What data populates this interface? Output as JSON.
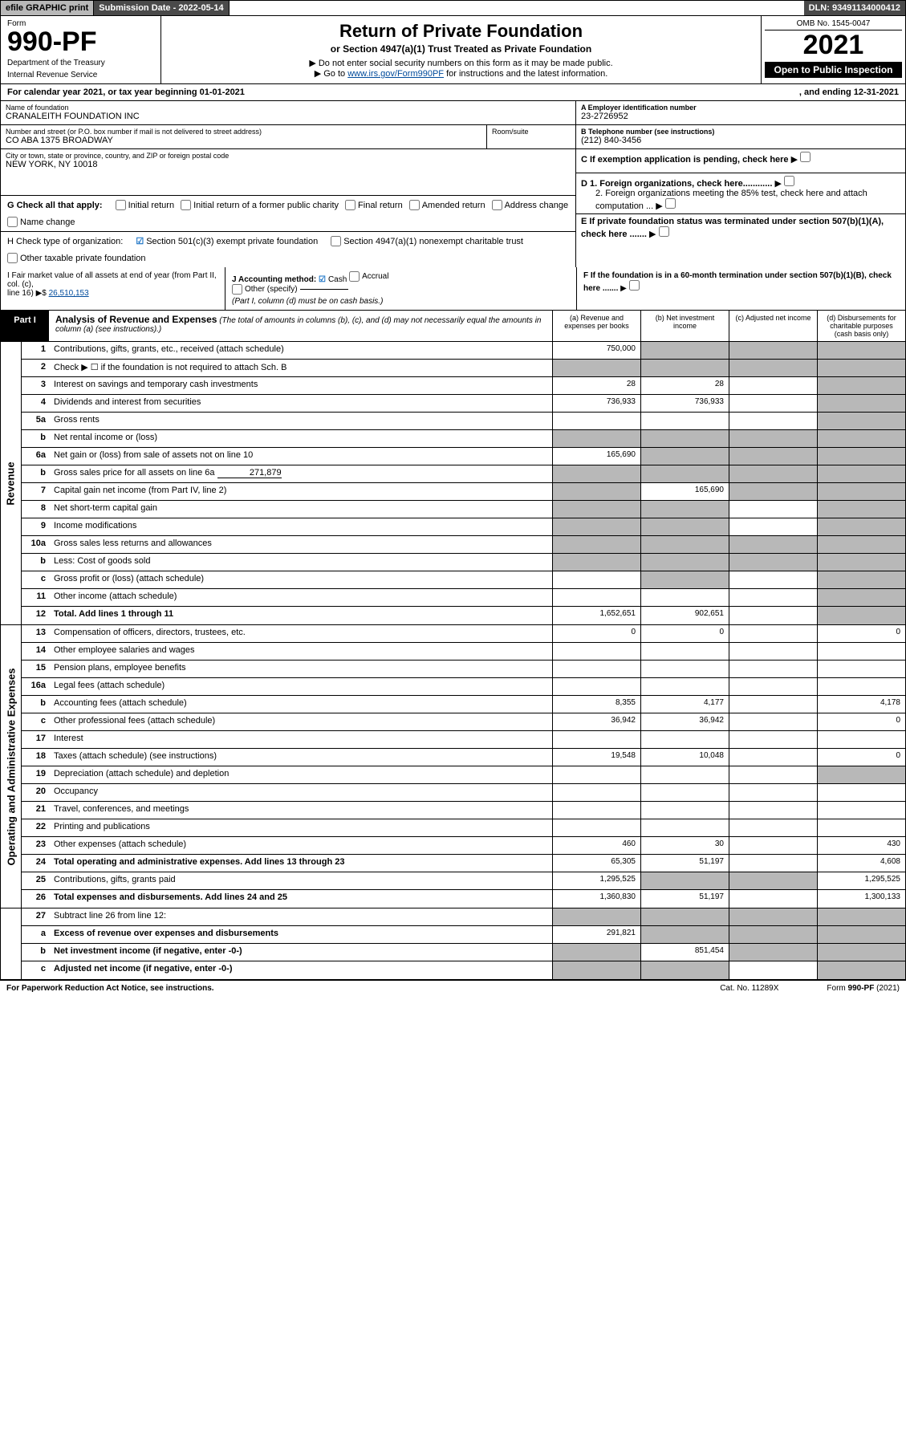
{
  "topbar": {
    "efile": "efile GRAPHIC print",
    "submission": "Submission Date - 2022-05-14",
    "dln": "DLN: 93491134000412"
  },
  "header": {
    "form_label": "Form",
    "form_number": "990-PF",
    "dept1": "Department of the Treasury",
    "dept2": "Internal Revenue Service",
    "title": "Return of Private Foundation",
    "subtitle": "or Section 4947(a)(1) Trust Treated as Private Foundation",
    "note1": "▶ Do not enter social security numbers on this form as it may be made public.",
    "note2_pre": "▶ Go to ",
    "note2_link": "www.irs.gov/Form990PF",
    "note2_post": " for instructions and the latest information.",
    "omb": "OMB No. 1545-0047",
    "year": "2021",
    "inspection": "Open to Public Inspection"
  },
  "calendar": {
    "text": "For calendar year 2021, or tax year beginning 01-01-2021",
    "ending": ", and ending 12-31-2021"
  },
  "info": {
    "name_lbl": "Name of foundation",
    "name": "CRANALEITH FOUNDATION INC",
    "addr_lbl": "Number and street (or P.O. box number if mail is not delivered to street address)",
    "addr": "CO ABA 1375 BROADWAY",
    "room_lbl": "Room/suite",
    "city_lbl": "City or town, state or province, country, and ZIP or foreign postal code",
    "city": "NEW YORK, NY  10018",
    "a_lbl": "A Employer identification number",
    "a_val": "23-2726952",
    "b_lbl": "B Telephone number (see instructions)",
    "b_val": "(212) 840-3456",
    "c_lbl": "C If exemption application is pending, check here",
    "d1": "D 1. Foreign organizations, check here............",
    "d2": "2. Foreign organizations meeting the 85% test, check here and attach computation ...",
    "e_lbl": "E  If private foundation status was terminated under section 507(b)(1)(A), check here .......",
    "f_lbl": "F  If the foundation is in a 60-month termination under section 507(b)(1)(B), check here ......."
  },
  "g": {
    "lead": "G Check all that apply:",
    "opts": [
      "Initial return",
      "Initial return of a former public charity",
      "Final return",
      "Amended return",
      "Address change",
      "Name change"
    ]
  },
  "h": {
    "lead": "H Check type of organization:",
    "opt1": "Section 501(c)(3) exempt private foundation",
    "opt2": "Section 4947(a)(1) nonexempt charitable trust",
    "opt3": "Other taxable private foundation"
  },
  "i": {
    "text1": "I Fair market value of all assets at end of year (from Part II, col. (c),",
    "text2": "line 16) ▶$ ",
    "value": "26,510,153"
  },
  "j": {
    "lead": "J Accounting method:",
    "cash": "Cash",
    "accrual": "Accrual",
    "other": "Other (specify)",
    "note": "(Part I, column (d) must be on cash basis.)"
  },
  "part1": {
    "label": "Part I",
    "title": "Analysis of Revenue and Expenses",
    "note": " (The total of amounts in columns (b), (c), and (d) may not necessarily equal the amounts in column (a) (see instructions).)",
    "col_a": "(a)   Revenue and expenses per books",
    "col_b": "(b)  Net investment income",
    "col_c": "(c)  Adjusted net income",
    "col_d": "(d)  Disbursements for charitable purposes (cash basis only)"
  },
  "sides": {
    "revenue": "Revenue",
    "opex": "Operating and Administrative Expenses"
  },
  "rows": {
    "r1": {
      "n": "1",
      "d": "Contributions, gifts, grants, etc., received (attach schedule)",
      "a": "750,000",
      "b": "",
      "c": "",
      "dd": "",
      "shadeB": true,
      "shadeC": true,
      "shadeD": true
    },
    "r2": {
      "n": "2",
      "d": "Check ▶ ☐ if the foundation is not required to attach Sch. B",
      "a": "",
      "b": "",
      "c": "",
      "dd": "",
      "shadeA": true,
      "shadeB": true,
      "shadeC": true,
      "shadeD": true,
      "noB": true
    },
    "r3": {
      "n": "3",
      "d": "Interest on savings and temporary cash investments",
      "a": "28",
      "b": "28",
      "c": "",
      "dd": "",
      "shadeD": true
    },
    "r4": {
      "n": "4",
      "d": "Dividends and interest from securities",
      "a": "736,933",
      "b": "736,933",
      "c": "",
      "dd": "",
      "shadeD": true
    },
    "r5a": {
      "n": "5a",
      "d": "Gross rents",
      "a": "",
      "b": "",
      "c": "",
      "dd": "",
      "shadeD": true
    },
    "r5b": {
      "n": "b",
      "d": "Net rental income or (loss)",
      "a": "",
      "b": "",
      "c": "",
      "dd": "",
      "shadeA": true,
      "shadeB": true,
      "shadeC": true,
      "shadeD": true
    },
    "r6a": {
      "n": "6a",
      "d": "Net gain or (loss) from sale of assets not on line 10",
      "a": "165,690",
      "b": "",
      "c": "",
      "dd": "",
      "shadeB": true,
      "shadeC": true,
      "shadeD": true
    },
    "r6b": {
      "n": "b",
      "d": "Gross sales price for all assets on line 6a",
      "inline": "271,879",
      "a": "",
      "b": "",
      "c": "",
      "dd": "",
      "shadeA": true,
      "shadeB": true,
      "shadeC": true,
      "shadeD": true
    },
    "r7": {
      "n": "7",
      "d": "Capital gain net income (from Part IV, line 2)",
      "a": "",
      "b": "165,690",
      "c": "",
      "dd": "",
      "shadeA": true,
      "shadeC": true,
      "shadeD": true
    },
    "r8": {
      "n": "8",
      "d": "Net short-term capital gain",
      "a": "",
      "b": "",
      "c": "",
      "dd": "",
      "shadeA": true,
      "shadeB": true,
      "shadeD": true
    },
    "r9": {
      "n": "9",
      "d": "Income modifications",
      "a": "",
      "b": "",
      "c": "",
      "dd": "",
      "shadeA": true,
      "shadeB": true,
      "shadeD": true
    },
    "r10a": {
      "n": "10a",
      "d": "Gross sales less returns and allowances",
      "a": "",
      "b": "",
      "c": "",
      "dd": "",
      "shadeA": true,
      "shadeB": true,
      "shadeC": true,
      "shadeD": true
    },
    "r10b": {
      "n": "b",
      "d": "Less: Cost of goods sold",
      "a": "",
      "b": "",
      "c": "",
      "dd": "",
      "shadeA": true,
      "shadeB": true,
      "shadeC": true,
      "shadeD": true
    },
    "r10c": {
      "n": "c",
      "d": "Gross profit or (loss) (attach schedule)",
      "a": "",
      "b": "",
      "c": "",
      "dd": "",
      "shadeB": true,
      "shadeD": true
    },
    "r11": {
      "n": "11",
      "d": "Other income (attach schedule)",
      "a": "",
      "b": "",
      "c": "",
      "dd": "",
      "shadeD": true
    },
    "r12": {
      "n": "12",
      "d": "Total. Add lines 1 through 11",
      "bold": true,
      "a": "1,652,651",
      "b": "902,651",
      "c": "",
      "dd": "",
      "shadeD": true
    },
    "r13": {
      "n": "13",
      "d": "Compensation of officers, directors, trustees, etc.",
      "a": "0",
      "b": "0",
      "c": "",
      "dd": "0"
    },
    "r14": {
      "n": "14",
      "d": "Other employee salaries and wages",
      "a": "",
      "b": "",
      "c": "",
      "dd": ""
    },
    "r15": {
      "n": "15",
      "d": "Pension plans, employee benefits",
      "a": "",
      "b": "",
      "c": "",
      "dd": ""
    },
    "r16a": {
      "n": "16a",
      "d": "Legal fees (attach schedule)",
      "a": "",
      "b": "",
      "c": "",
      "dd": ""
    },
    "r16b": {
      "n": "b",
      "d": "Accounting fees (attach schedule)",
      "a": "8,355",
      "b": "4,177",
      "c": "",
      "dd": "4,178"
    },
    "r16c": {
      "n": "c",
      "d": "Other professional fees (attach schedule)",
      "a": "36,942",
      "b": "36,942",
      "c": "",
      "dd": "0"
    },
    "r17": {
      "n": "17",
      "d": "Interest",
      "a": "",
      "b": "",
      "c": "",
      "dd": ""
    },
    "r18": {
      "n": "18",
      "d": "Taxes (attach schedule) (see instructions)",
      "a": "19,548",
      "b": "10,048",
      "c": "",
      "dd": "0"
    },
    "r19": {
      "n": "19",
      "d": "Depreciation (attach schedule) and depletion",
      "a": "",
      "b": "",
      "c": "",
      "dd": "",
      "shadeD": true
    },
    "r20": {
      "n": "20",
      "d": "Occupancy",
      "a": "",
      "b": "",
      "c": "",
      "dd": ""
    },
    "r21": {
      "n": "21",
      "d": "Travel, conferences, and meetings",
      "a": "",
      "b": "",
      "c": "",
      "dd": ""
    },
    "r22": {
      "n": "22",
      "d": "Printing and publications",
      "a": "",
      "b": "",
      "c": "",
      "dd": ""
    },
    "r23": {
      "n": "23",
      "d": "Other expenses (attach schedule)",
      "a": "460",
      "b": "30",
      "c": "",
      "dd": "430"
    },
    "r24": {
      "n": "24",
      "d": "Total operating and administrative expenses. Add lines 13 through 23",
      "bold": true,
      "a": "65,305",
      "b": "51,197",
      "c": "",
      "dd": "4,608"
    },
    "r25": {
      "n": "25",
      "d": "Contributions, gifts, grants paid",
      "a": "1,295,525",
      "b": "",
      "c": "",
      "dd": "1,295,525",
      "shadeB": true,
      "shadeC": true
    },
    "r26": {
      "n": "26",
      "d": "Total expenses and disbursements. Add lines 24 and 25",
      "bold": true,
      "a": "1,360,830",
      "b": "51,197",
      "c": "",
      "dd": "1,300,133"
    },
    "r27": {
      "n": "27",
      "d": "Subtract line 26 from line 12:",
      "a": "",
      "b": "",
      "c": "",
      "dd": "",
      "shadeA": true,
      "shadeB": true,
      "shadeC": true,
      "shadeD": true
    },
    "r27a": {
      "n": "a",
      "d": "Excess of revenue over expenses and disbursements",
      "bold": true,
      "a": "291,821",
      "b": "",
      "c": "",
      "dd": "",
      "shadeB": true,
      "shadeC": true,
      "shadeD": true
    },
    "r27b": {
      "n": "b",
      "d": "Net investment income (if negative, enter -0-)",
      "bold": true,
      "a": "",
      "b": "851,454",
      "c": "",
      "dd": "",
      "shadeA": true,
      "shadeC": true,
      "shadeD": true
    },
    "r27c": {
      "n": "c",
      "d": "Adjusted net income (if negative, enter -0-)",
      "bold": true,
      "a": "",
      "b": "",
      "c": "",
      "dd": "",
      "shadeA": true,
      "shadeB": true,
      "shadeD": true
    }
  },
  "footer": {
    "left": "For Paperwork Reduction Act Notice, see instructions.",
    "mid": "Cat. No. 11289X",
    "right": "Form 990-PF (2021)"
  }
}
